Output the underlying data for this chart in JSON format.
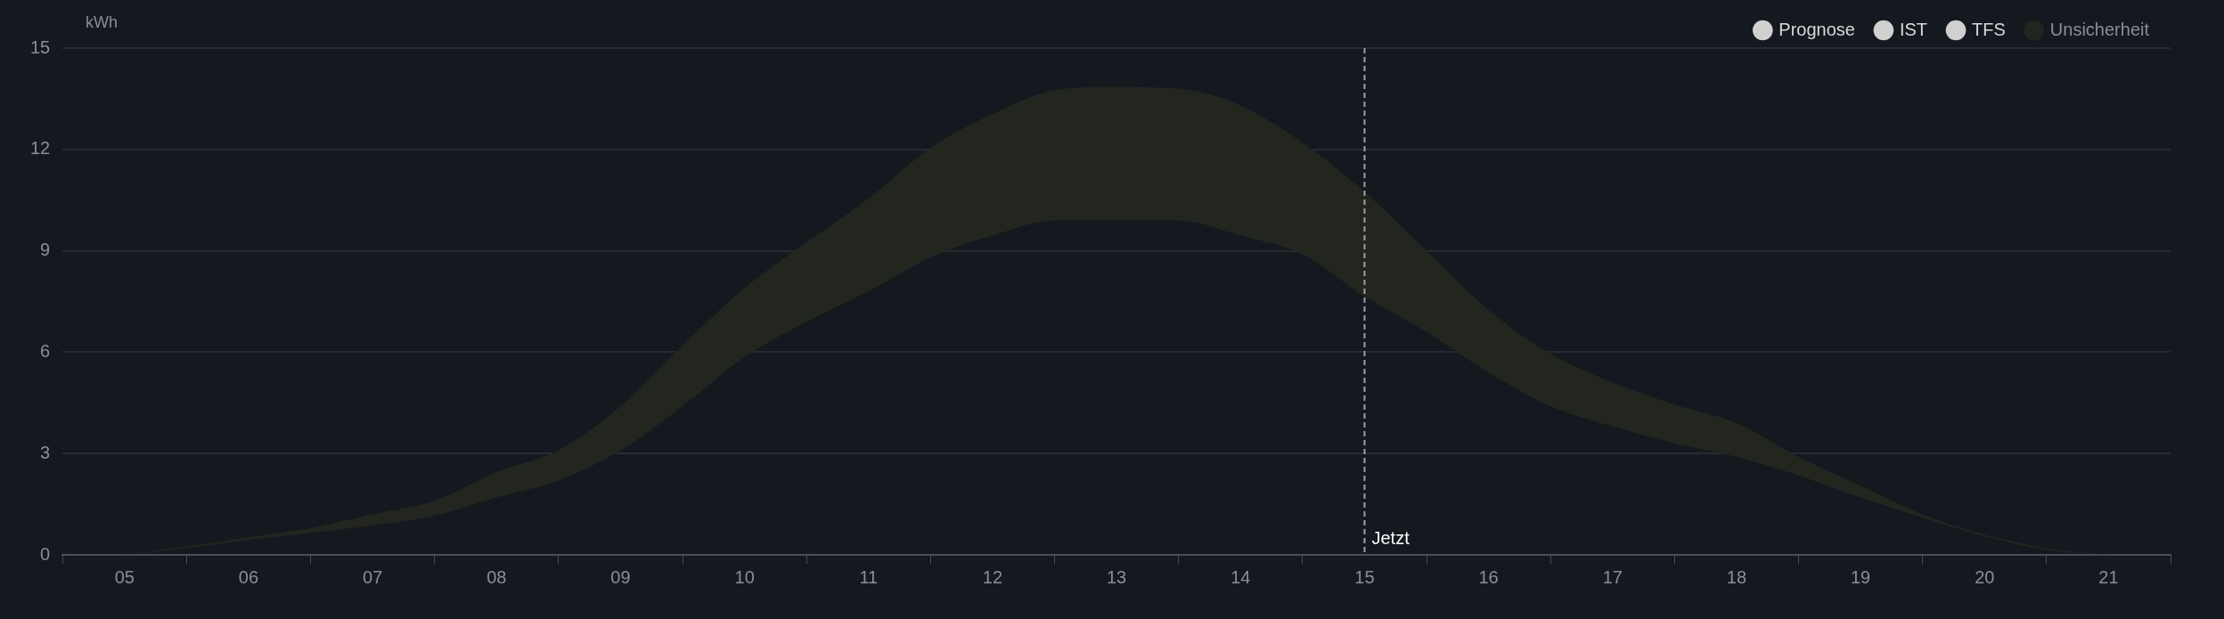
{
  "chart_data": {
    "type": "line",
    "ylabel": "kWh",
    "x": [
      5,
      5.5,
      6,
      6.5,
      7,
      7.5,
      8,
      8.5,
      9,
      9.5,
      10,
      10.5,
      11,
      11.5,
      12,
      12.5,
      13,
      13.5,
      14,
      14.5,
      15,
      15.5,
      16,
      16.5,
      17,
      17.5,
      18,
      18.5,
      19,
      19.5,
      20,
      20.5,
      21
    ],
    "xlim": [
      4.5,
      21.5
    ],
    "xticks": [
      {
        "value": 4.5,
        "label": null
      },
      {
        "value": 5,
        "label": "05"
      },
      {
        "value": 5.5,
        "label": null
      },
      {
        "value": 6,
        "label": "06"
      },
      {
        "value": 6.5,
        "label": null
      },
      {
        "value": 7,
        "label": "07"
      },
      {
        "value": 7.5,
        "label": null
      },
      {
        "value": 8,
        "label": "08"
      },
      {
        "value": 8.5,
        "label": null
      },
      {
        "value": 9,
        "label": "09"
      },
      {
        "value": 9.5,
        "label": null
      },
      {
        "value": 10,
        "label": "10"
      },
      {
        "value": 10.5,
        "label": null
      },
      {
        "value": 11,
        "label": "11"
      },
      {
        "value": 11.5,
        "label": null
      },
      {
        "value": 12,
        "label": "12"
      },
      {
        "value": 12.5,
        "label": null
      },
      {
        "value": 13,
        "label": "13"
      },
      {
        "value": 13.5,
        "label": null
      },
      {
        "value": 14,
        "label": "14"
      },
      {
        "value": 14.5,
        "label": null
      },
      {
        "value": 15,
        "label": "15"
      },
      {
        "value": 15.5,
        "label": null
      },
      {
        "value": 16,
        "label": "16"
      },
      {
        "value": 16.5,
        "label": null
      },
      {
        "value": 17,
        "label": "17"
      },
      {
        "value": 17.5,
        "label": null
      },
      {
        "value": 18,
        "label": "18"
      },
      {
        "value": 18.5,
        "label": null
      },
      {
        "value": 19,
        "label": "19"
      },
      {
        "value": 19.5,
        "label": null
      },
      {
        "value": 20,
        "label": "20"
      },
      {
        "value": 20.5,
        "label": null
      },
      {
        "value": 21,
        "label": "21"
      },
      {
        "value": 21.5,
        "label": null
      }
    ],
    "ylim": [
      0,
      15
    ],
    "yticks": [
      0,
      3,
      6,
      9,
      12,
      15
    ],
    "grid": "y",
    "legend": "top right",
    "series": [
      {
        "name": "Prognose",
        "color": "#d0d0d0",
        "values": [
          null,
          null,
          null,
          null,
          null,
          null,
          null,
          null,
          null,
          null,
          null,
          null,
          null,
          null,
          null,
          null,
          null,
          null,
          null,
          null,
          null,
          null,
          null,
          null,
          null,
          null,
          null,
          null,
          null,
          null,
          null,
          null,
          null
        ]
      },
      {
        "name": "IST",
        "color": "#d0d0d0",
        "values": [
          null,
          null,
          null,
          null,
          null,
          null,
          null,
          null,
          null,
          null,
          null,
          null,
          null,
          null,
          null,
          null,
          null,
          null,
          null,
          null,
          null,
          null,
          null,
          null,
          null,
          null,
          null,
          null,
          null,
          null,
          null,
          null,
          null
        ]
      },
      {
        "name": "TFS",
        "color": "#d0d0d0",
        "values": [
          null,
          null,
          null,
          null,
          null,
          null,
          null,
          null,
          null,
          null,
          null,
          null,
          null,
          null,
          null,
          null,
          null,
          null,
          null,
          null,
          null,
          null,
          null,
          null,
          null,
          null,
          null,
          null,
          null,
          null,
          null,
          null,
          null
        ]
      },
      {
        "name": "Unsicherheit",
        "type": "area",
        "color": "#23251f",
        "values": [
          null,
          null,
          null,
          null,
          null,
          null,
          null,
          null,
          null,
          null,
          null,
          null,
          null,
          null,
          null,
          null,
          null,
          null,
          null,
          null,
          null,
          null,
          null,
          null,
          null,
          null,
          null,
          null,
          null,
          null,
          null,
          null,
          null
        ],
        "lower": [
          0,
          0.2,
          0.44,
          0.65,
          0.87,
          1.16,
          1.7,
          2.2,
          3.1,
          4.4,
          5.85,
          6.9,
          7.8,
          8.8,
          9.45,
          9.9,
          9.9,
          9.9,
          9.45,
          8.9,
          7.65,
          6.6,
          5.4,
          4.4,
          3.8,
          3.3,
          2.9,
          2.35,
          1.7,
          1.1,
          0.55,
          0.15,
          0
        ],
        "upper": [
          0,
          0.25,
          0.52,
          0.8,
          1.2,
          1.6,
          2.45,
          3.1,
          4.4,
          6.2,
          7.9,
          9.25,
          10.55,
          12.05,
          13.05,
          13.75,
          13.85,
          13.8,
          13.3,
          12.2,
          10.75,
          9.0,
          7.25,
          5.95,
          5.1,
          4.45,
          3.9,
          2.9,
          2.05,
          1.2,
          0.6,
          0.2,
          0
        ]
      }
    ],
    "ref_lines": [
      {
        "axis": "x",
        "value": 15,
        "label": "Jetzt",
        "color": "#a0a0a0",
        "line_style": "dashed"
      }
    ]
  }
}
